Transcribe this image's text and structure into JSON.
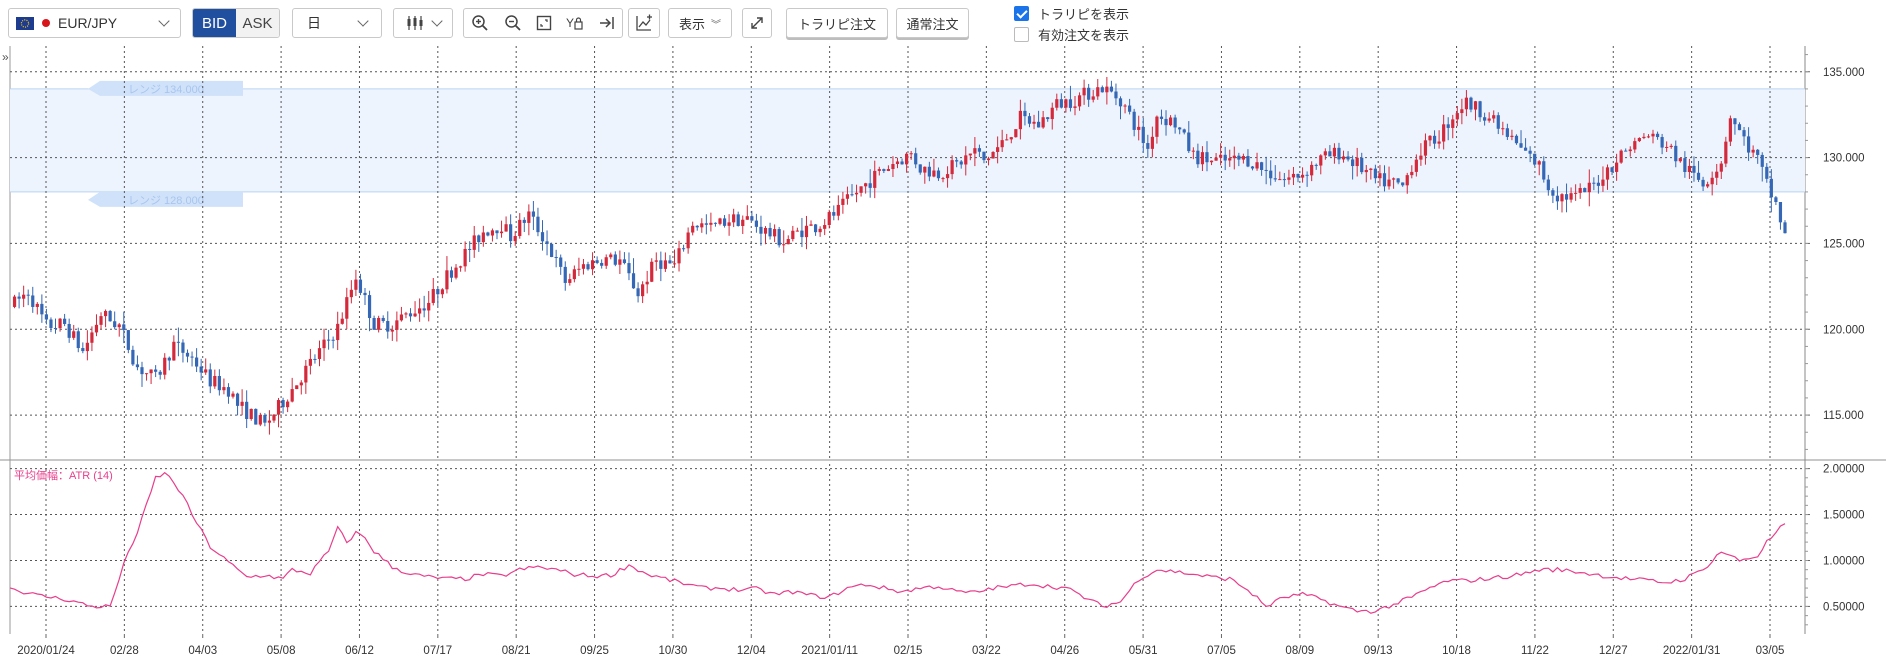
{
  "toolbar": {
    "symbol": "EUR/JPY",
    "bid_label": "BID",
    "ask_label": "ASK",
    "timeframe": "日",
    "display_label": "表示",
    "trailpi_order_label": "トラリピ注文",
    "normal_order_label": "通常注文",
    "show_trailpi_label": "トラリピを表示",
    "show_trailpi_checked": true,
    "show_active_orders_label": "有効注文を表示",
    "show_active_orders_checked": false
  },
  "colors": {
    "bid_active": "#1f4f9e",
    "range_fill": "#edf4fd",
    "range_tag": "#cfe2fa",
    "candle_up": "#d4283b",
    "candle_down": "#3467b5",
    "atr_line": "#e83e8c"
  },
  "chart_data": [
    {
      "type": "candlestick",
      "symbol": "EUR/JPY",
      "ylim": [
        112.5,
        136.5
      ],
      "y_ticks": [
        "135.000",
        "130.000",
        "125.000",
        "120.000",
        "115.000"
      ],
      "x_tick_labels": [
        "2020/01/24",
        "02/28",
        "04/03",
        "05/08",
        "06/12",
        "07/17",
        "08/21",
        "09/25",
        "10/30",
        "12/04",
        "2021/01/11",
        "02/15",
        "03/22",
        "04/26",
        "05/31",
        "07/05",
        "08/09",
        "09/13",
        "10/18",
        "11/22",
        "12/27",
        "2022/01/31",
        "03/05"
      ],
      "close_path": [
        [
          0,
          121.3
        ],
        [
          4,
          122.2
        ],
        [
          8,
          120.2
        ],
        [
          12,
          120.3
        ],
        [
          16,
          118.7
        ],
        [
          20,
          120.9
        ],
        [
          24,
          120.2
        ],
        [
          28,
          117.8
        ],
        [
          32,
          117.1
        ],
        [
          36,
          119.1
        ],
        [
          40,
          118.3
        ],
        [
          44,
          117.0
        ],
        [
          48,
          116.5
        ],
        [
          50,
          115.6
        ],
        [
          56,
          114.4
        ],
        [
          60,
          115.8
        ],
        [
          66,
          118.0
        ],
        [
          72,
          120.1
        ],
        [
          76,
          123.1
        ],
        [
          80,
          120.3
        ],
        [
          84,
          120.3
        ],
        [
          88,
          121.0
        ],
        [
          92,
          121.6
        ],
        [
          96,
          123.1
        ],
        [
          100,
          124.4
        ],
        [
          104,
          125.7
        ],
        [
          108,
          126.1
        ],
        [
          110,
          125.4
        ],
        [
          114,
          126.7
        ],
        [
          118,
          125.0
        ],
        [
          122,
          122.8
        ],
        [
          126,
          123.7
        ],
        [
          130,
          124.1
        ],
        [
          134,
          124.0
        ],
        [
          138,
          122.1
        ],
        [
          142,
          124.0
        ],
        [
          146,
          123.7
        ],
        [
          150,
          126.2
        ],
        [
          154,
          125.9
        ],
        [
          158,
          126.4
        ],
        [
          162,
          126.4
        ],
        [
          166,
          125.7
        ],
        [
          170,
          125.1
        ],
        [
          174,
          125.8
        ],
        [
          178,
          126.1
        ],
        [
          182,
          126.9
        ],
        [
          186,
          128.0
        ],
        [
          190,
          128.9
        ],
        [
          194,
          129.7
        ],
        [
          198,
          130.2
        ],
        [
          200,
          129.4
        ],
        [
          204,
          129.1
        ],
        [
          208,
          129.6
        ],
        [
          212,
          130.4
        ],
        [
          214,
          129.8
        ],
        [
          218,
          130.8
        ],
        [
          222,
          132.3
        ],
        [
          226,
          131.9
        ],
        [
          230,
          133.1
        ],
        [
          234,
          133.4
        ],
        [
          238,
          133.9
        ],
        [
          240,
          134.1
        ],
        [
          244,
          133.4
        ],
        [
          248,
          131.5
        ],
        [
          250,
          130.5
        ],
        [
          252,
          132.5
        ],
        [
          256,
          132.0
        ],
        [
          260,
          130.1
        ],
        [
          264,
          129.8
        ],
        [
          268,
          129.8
        ],
        [
          272,
          129.9
        ],
        [
          276,
          129.2
        ],
        [
          280,
          128.7
        ],
        [
          284,
          129.1
        ],
        [
          288,
          129.9
        ],
        [
          292,
          130.3
        ],
        [
          296,
          129.6
        ],
        [
          300,
          128.7
        ],
        [
          304,
          128.5
        ],
        [
          306,
          128.3
        ],
        [
          308,
          129.6
        ],
        [
          310,
          130.4
        ],
        [
          314,
          131.3
        ],
        [
          318,
          132.8
        ],
        [
          320,
          133.2
        ],
        [
          324,
          132.6
        ],
        [
          328,
          131.5
        ],
        [
          332,
          130.5
        ],
        [
          336,
          129.5
        ],
        [
          338,
          128.3
        ],
        [
          340,
          127.8
        ],
        [
          344,
          127.7
        ],
        [
          348,
          128.4
        ],
        [
          352,
          129.6
        ],
        [
          356,
          130.7
        ],
        [
          360,
          131.3
        ],
        [
          364,
          130.7
        ],
        [
          368,
          129.4
        ],
        [
          372,
          128.5
        ],
        [
          376,
          129.8
        ],
        [
          378,
          132.5
        ],
        [
          380,
          131.5
        ],
        [
          382,
          130.6
        ],
        [
          384,
          129.9
        ],
        [
          386,
          128.4
        ],
        [
          388,
          127.3
        ],
        [
          390,
          125.4
        ]
      ]
    },
    {
      "type": "line",
      "title": "平均価幅：ATR (14)",
      "ylim": [
        0.2,
        2.05
      ],
      "y_ticks": [
        "2.00000",
        "1.50000",
        "1.00000",
        "0.50000"
      ],
      "values_path": [
        [
          0,
          0.7
        ],
        [
          6,
          0.62
        ],
        [
          12,
          0.58
        ],
        [
          18,
          0.5
        ],
        [
          22,
          0.5
        ],
        [
          24,
          0.8
        ],
        [
          26,
          1.1
        ],
        [
          28,
          1.3
        ],
        [
          30,
          1.6
        ],
        [
          32,
          1.9
        ],
        [
          34,
          1.95
        ],
        [
          36,
          1.85
        ],
        [
          38,
          1.7
        ],
        [
          40,
          1.5
        ],
        [
          44,
          1.15
        ],
        [
          48,
          0.98
        ],
        [
          52,
          0.82
        ],
        [
          56,
          0.84
        ],
        [
          60,
          0.8
        ],
        [
          62,
          0.9
        ],
        [
          66,
          0.86
        ],
        [
          70,
          1.1
        ],
        [
          72,
          1.35
        ],
        [
          74,
          1.2
        ],
        [
          76,
          1.3
        ],
        [
          78,
          1.25
        ],
        [
          80,
          1.1
        ],
        [
          84,
          0.93
        ],
        [
          88,
          0.85
        ],
        [
          92,
          0.82
        ],
        [
          96,
          0.8
        ],
        [
          100,
          0.8
        ],
        [
          104,
          0.85
        ],
        [
          108,
          0.83
        ],
        [
          112,
          0.9
        ],
        [
          116,
          0.93
        ],
        [
          120,
          0.9
        ],
        [
          124,
          0.85
        ],
        [
          128,
          0.83
        ],
        [
          132,
          0.84
        ],
        [
          136,
          0.95
        ],
        [
          140,
          0.85
        ],
        [
          144,
          0.8
        ],
        [
          148,
          0.75
        ],
        [
          152,
          0.7
        ],
        [
          156,
          0.7
        ],
        [
          160,
          0.68
        ],
        [
          164,
          0.69
        ],
        [
          168,
          0.63
        ],
        [
          172,
          0.66
        ],
        [
          176,
          0.62
        ],
        [
          180,
          0.6
        ],
        [
          184,
          0.7
        ],
        [
          188,
          0.74
        ],
        [
          192,
          0.7
        ],
        [
          196,
          0.66
        ],
        [
          200,
          0.7
        ],
        [
          204,
          0.72
        ],
        [
          208,
          0.66
        ],
        [
          212,
          0.65
        ],
        [
          216,
          0.7
        ],
        [
          220,
          0.72
        ],
        [
          224,
          0.75
        ],
        [
          228,
          0.72
        ],
        [
          232,
          0.7
        ],
        [
          236,
          0.6
        ],
        [
          240,
          0.5
        ],
        [
          244,
          0.55
        ],
        [
          248,
          0.8
        ],
        [
          252,
          0.9
        ],
        [
          256,
          0.88
        ],
        [
          260,
          0.85
        ],
        [
          264,
          0.82
        ],
        [
          268,
          0.8
        ],
        [
          272,
          0.68
        ],
        [
          276,
          0.5
        ],
        [
          280,
          0.6
        ],
        [
          284,
          0.63
        ],
        [
          288,
          0.58
        ],
        [
          292,
          0.5
        ],
        [
          296,
          0.45
        ],
        [
          300,
          0.45
        ],
        [
          304,
          0.52
        ],
        [
          308,
          0.6
        ],
        [
          312,
          0.7
        ],
        [
          316,
          0.78
        ],
        [
          320,
          0.78
        ],
        [
          324,
          0.8
        ],
        [
          328,
          0.82
        ],
        [
          332,
          0.85
        ],
        [
          336,
          0.9
        ],
        [
          340,
          0.9
        ],
        [
          344,
          0.88
        ],
        [
          348,
          0.85
        ],
        [
          352,
          0.82
        ],
        [
          356,
          0.8
        ],
        [
          360,
          0.78
        ],
        [
          364,
          0.76
        ],
        [
          368,
          0.8
        ],
        [
          372,
          0.9
        ],
        [
          376,
          1.1
        ],
        [
          380,
          1.0
        ],
        [
          384,
          1.05
        ],
        [
          386,
          1.2
        ],
        [
          388,
          1.3
        ],
        [
          390,
          1.4
        ]
      ]
    }
  ],
  "range_overlay": {
    "upper_value": 134.0,
    "lower_value": 128.0,
    "upper_label": "レンジ 134.000",
    "lower_label": "レンジ 128.000"
  }
}
